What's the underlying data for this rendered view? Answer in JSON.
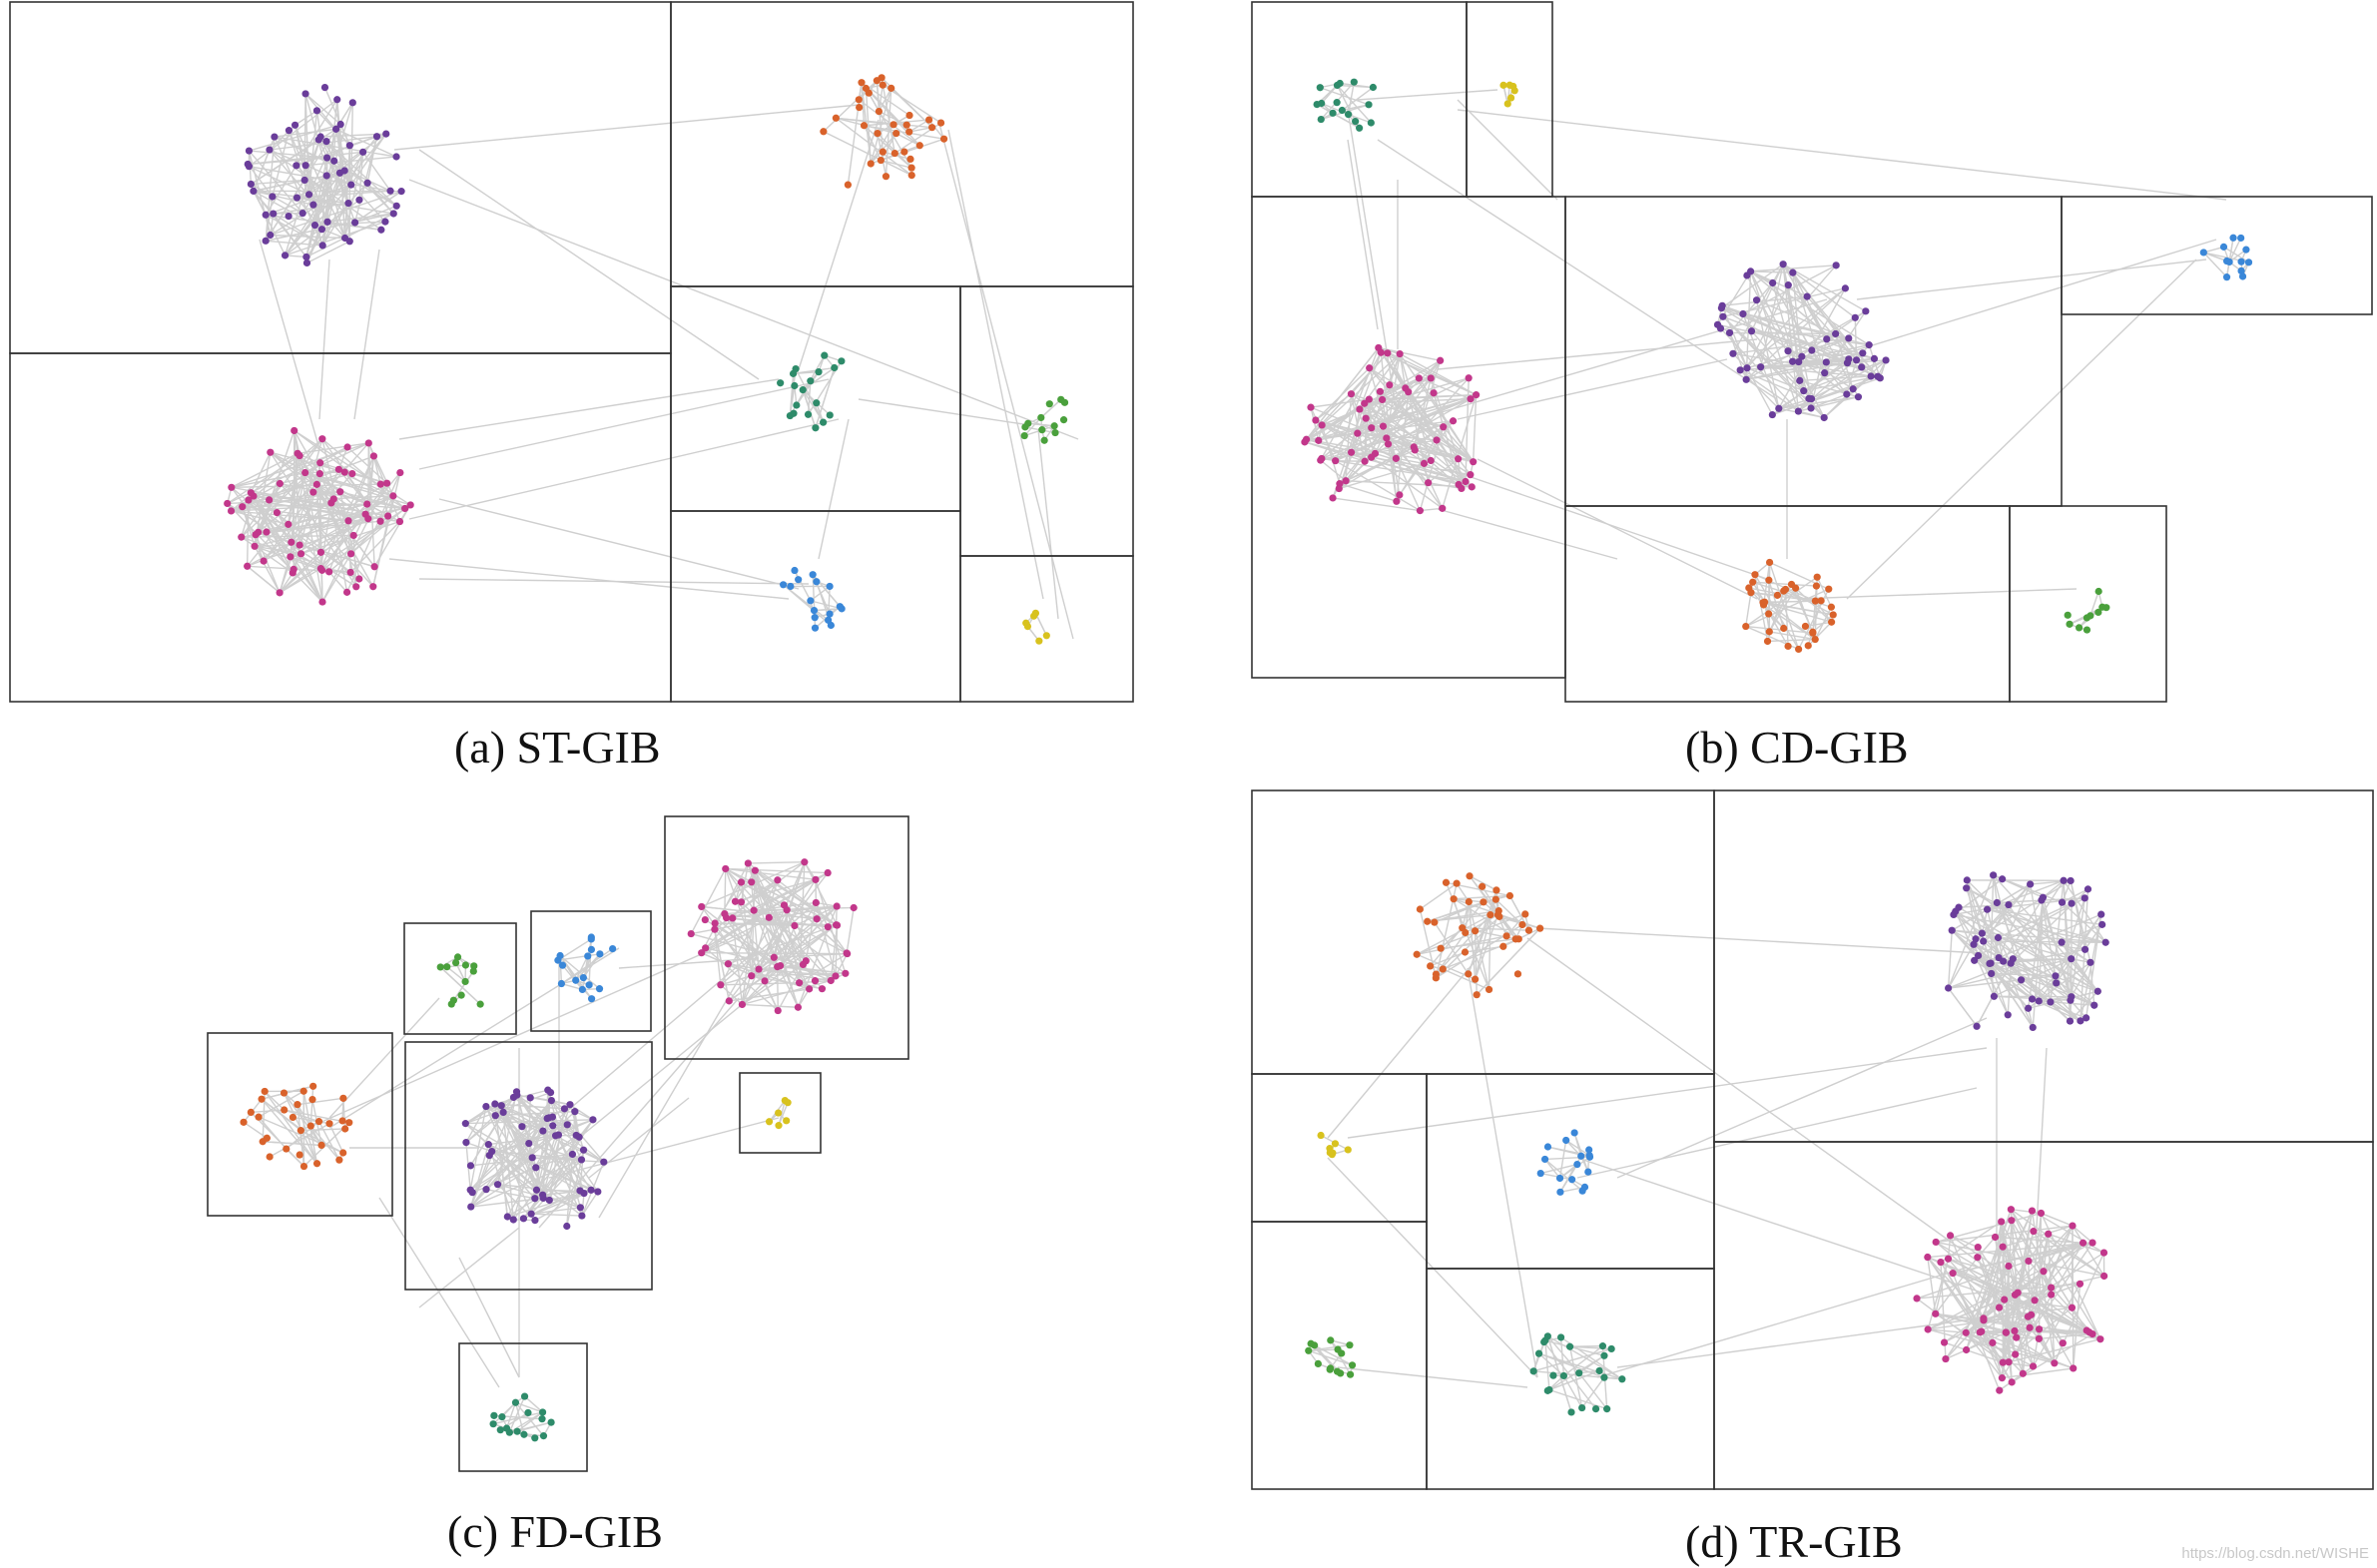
{
  "panels": {
    "a": {
      "caption": "(a) ST-GIB"
    },
    "b": {
      "caption": "(b) CD-GIB"
    },
    "c": {
      "caption": "(c) FD-GIB"
    },
    "d": {
      "caption": "(d) TR-GIB"
    }
  },
  "watermark": "https://blog.csdn.net/WISHE",
  "community_colors": {
    "purple": "#6a3d9a",
    "magenta": "#c2378b",
    "orange": "#d9622b",
    "teal": "#2e8b6a",
    "green": "#4aa03c",
    "blue": "#3a87d8",
    "yellow": "#d8c21e"
  },
  "edge_color": "#cfcfcf",
  "box_color": "#333333"
}
